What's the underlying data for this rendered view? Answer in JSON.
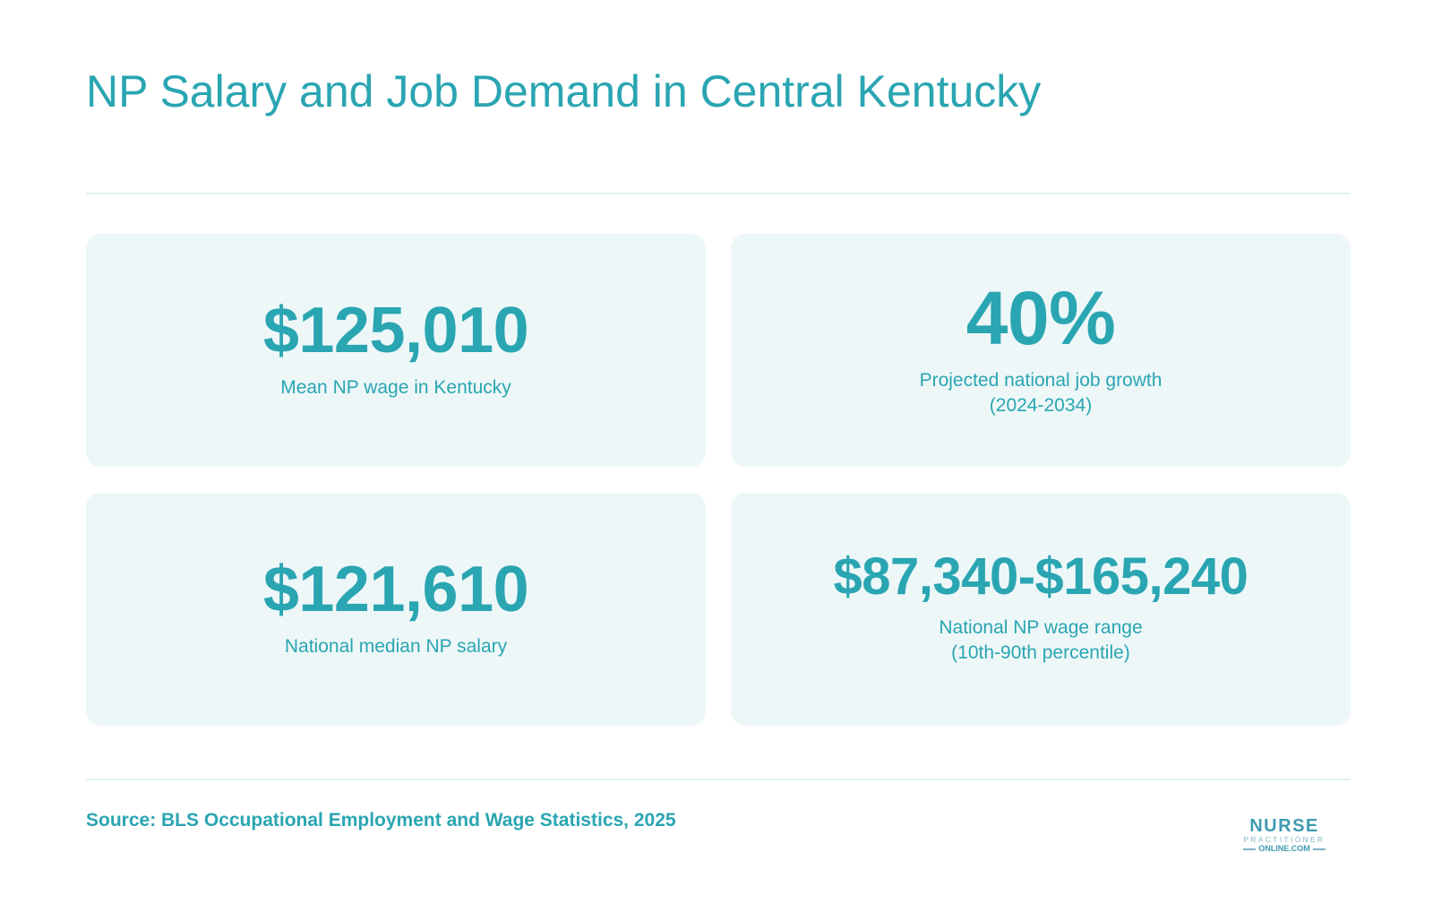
{
  "title": "NP Salary and Job Demand in Central Kentucky",
  "cards": [
    {
      "value": "$125,010",
      "label_lines": [
        "Mean NP wage in Kentucky"
      ]
    },
    {
      "value": "40%",
      "label_lines": [
        "Projected national job growth",
        "(2024-2034)"
      ]
    },
    {
      "value": "$121,610",
      "label_lines": [
        "National median NP salary"
      ]
    },
    {
      "value": "$87,340-$165,240",
      "label_lines": [
        "National NP wage range",
        "(10th-90th percentile)"
      ]
    }
  ],
  "source": "Source: BLS Occupational Employment and Wage Statistics, 2025",
  "logo": {
    "line1": "NURSE",
    "line2": "PRACTITIONER",
    "line3": "ONLINE.COM"
  },
  "colors": {
    "accent": "#2aa5b2",
    "card_background": "#edf7f8",
    "divider": "#e3f1f4"
  }
}
